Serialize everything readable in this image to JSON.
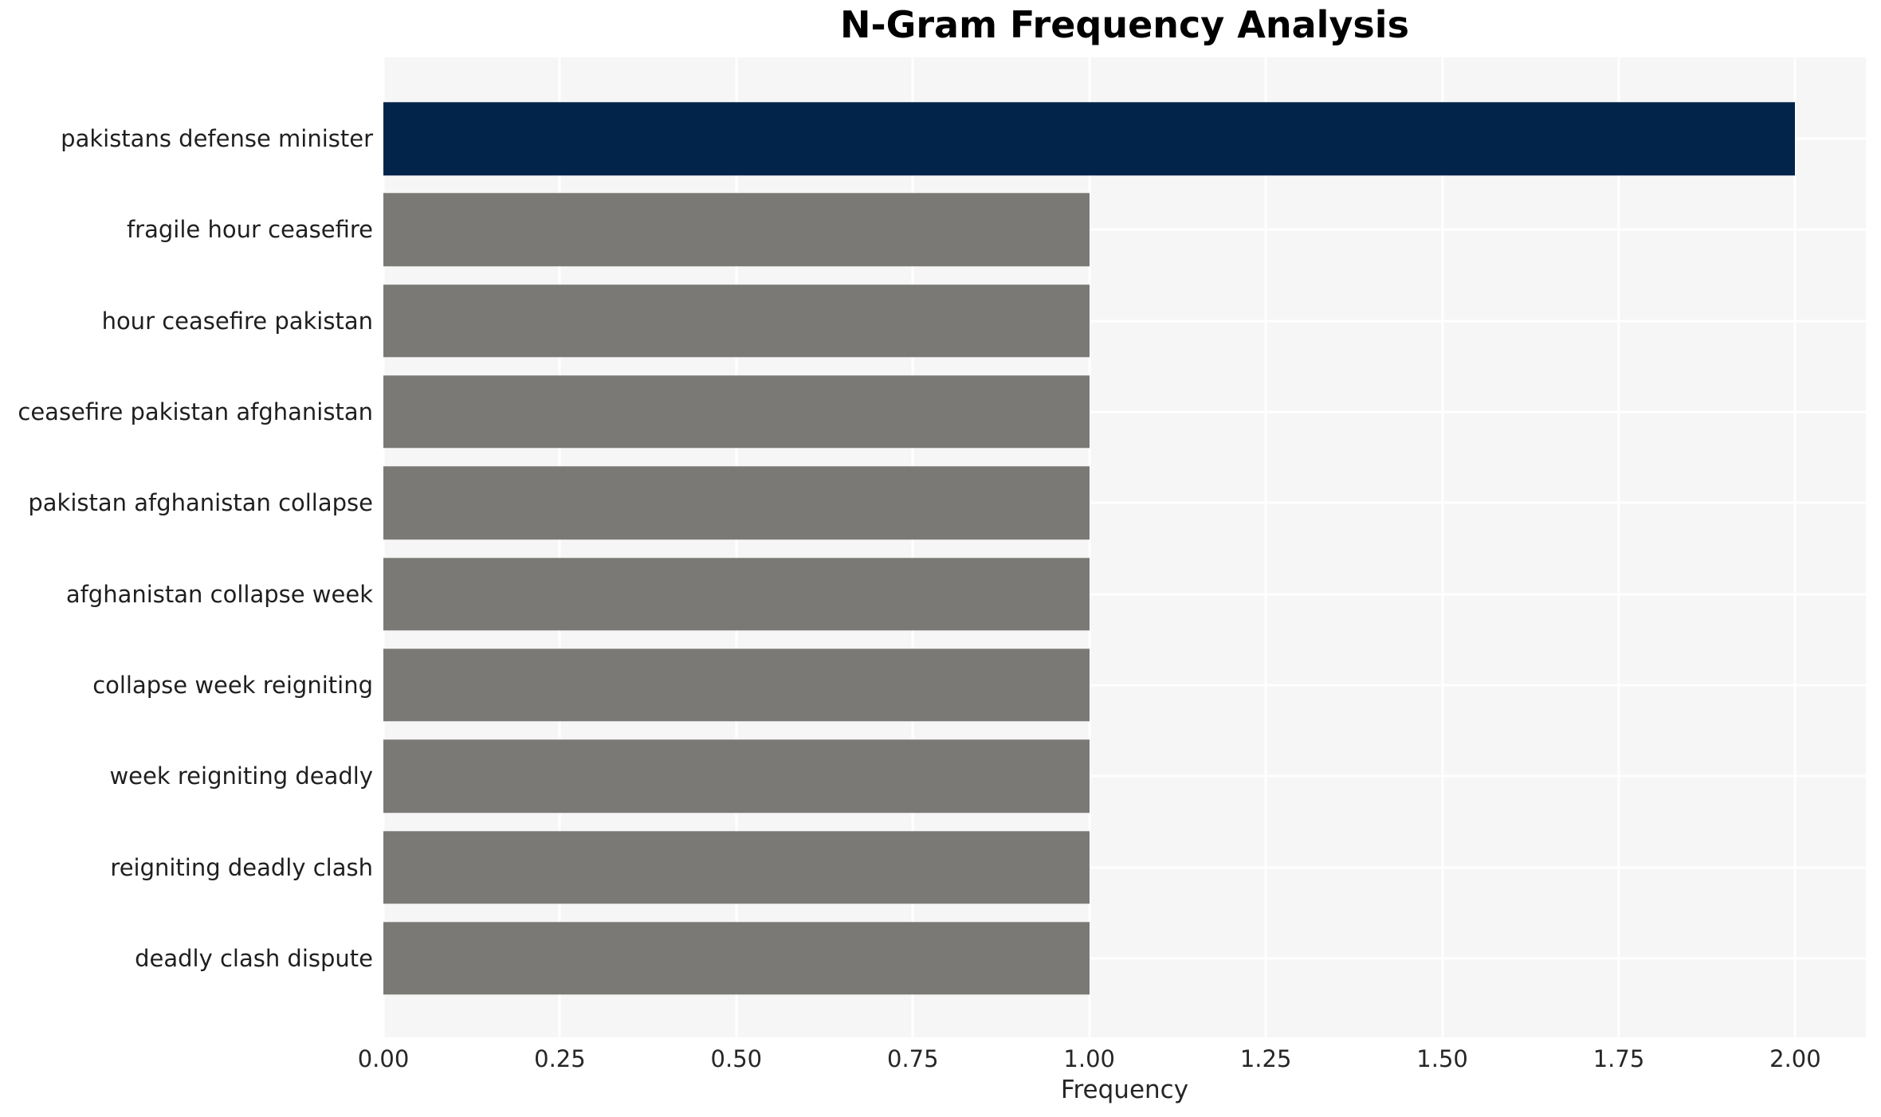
{
  "chart_data": {
    "type": "bar",
    "orientation": "horizontal",
    "title": "N-Gram Frequency Analysis",
    "xlabel": "Frequency",
    "ylabel": "",
    "categories": [
      "pakistans defense minister",
      "fragile hour ceasefire",
      "hour ceasefire pakistan",
      "ceasefire pakistan afghanistan",
      "pakistan afghanistan collapse",
      "afghanistan collapse week",
      "collapse week reigniting",
      "week reigniting deadly",
      "reigniting deadly clash",
      "deadly clash dispute"
    ],
    "values": [
      2,
      1,
      1,
      1,
      1,
      1,
      1,
      1,
      1,
      1
    ],
    "bar_colors": [
      "#02234a",
      "#7a7975",
      "#7a7975",
      "#7a7975",
      "#7a7975",
      "#7a7975",
      "#7a7975",
      "#7a7975",
      "#7a7975",
      "#7a7975"
    ],
    "xlim": [
      0,
      2.1
    ],
    "xtick_labels": [
      "0.00",
      "0.25",
      "0.50",
      "0.75",
      "1.00",
      "1.25",
      "1.50",
      "1.75",
      "2.00"
    ],
    "xtick_values": [
      0,
      0.25,
      0.5,
      0.75,
      1.0,
      1.25,
      1.5,
      1.75,
      2.0
    ],
    "grid": true,
    "legend_position": "none",
    "colors": {
      "highlight_bar": "#02234a",
      "default_bar": "#7a7975",
      "plot_background": "#f7f6f6",
      "gridline": "#ffffff",
      "tick_text": "#262626",
      "label_text": "#1f1f1f",
      "title_text": "#000000",
      "page_background": "#ffffff"
    }
  }
}
